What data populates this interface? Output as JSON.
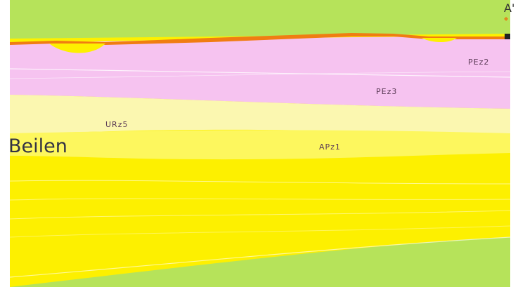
{
  "section": {
    "end_label": "A'",
    "place_name": "Beilen",
    "units": [
      {
        "code": "PEz2",
        "color": "#f6c3f0"
      },
      {
        "code": "PEz3",
        "color": "#f6c3f0"
      },
      {
        "code": "URz5",
        "color": "#fbf7b0"
      },
      {
        "code": "APz1",
        "color": "#fdf65a"
      }
    ],
    "colors": {
      "surface": "#f07d12",
      "upper_zechstein": "#f6c3f0",
      "pale_zone": "#fbf7b0",
      "yellow_zone": "#fdf000",
      "green_base": "#b6e35a",
      "frame_strip": "#34465f",
      "marker": "#e08a1e"
    },
    "icons": {
      "end_marker": "diamond-icon"
    }
  }
}
